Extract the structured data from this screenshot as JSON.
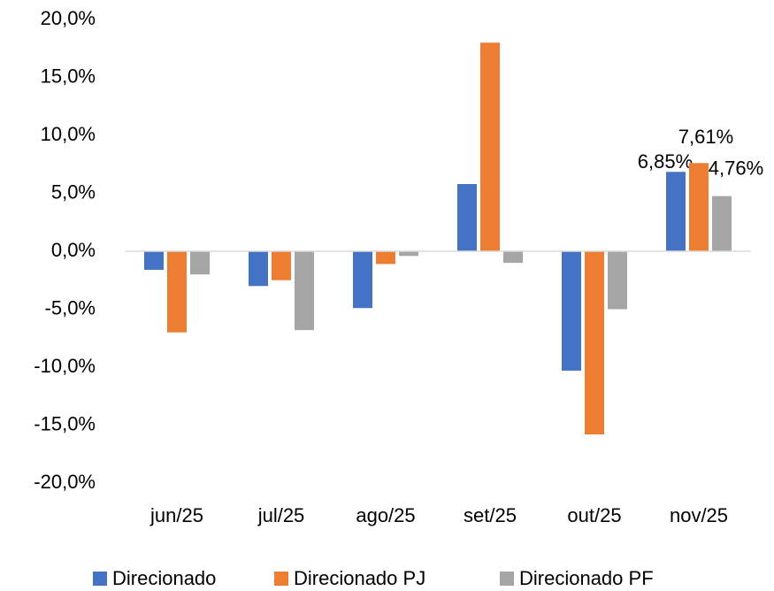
{
  "chart_data": {
    "type": "bar",
    "categories": [
      "jun/25",
      "jul/25",
      "ago/25",
      "set/25",
      "out/25",
      "nov/25"
    ],
    "series": [
      {
        "name": "Direcionado",
        "color": "#4472c4",
        "values": [
          -1.6,
          -3.0,
          -4.9,
          5.8,
          -10.3,
          6.85
        ],
        "value_labels": [
          null,
          null,
          null,
          null,
          null,
          "6,85%"
        ]
      },
      {
        "name": "Direcionado PJ",
        "color": "#ed7d31",
        "values": [
          -7.0,
          -2.5,
          -1.1,
          18.0,
          -15.8,
          7.61
        ],
        "value_labels": [
          null,
          null,
          null,
          null,
          null,
          "7,61%"
        ]
      },
      {
        "name": "Direcionado PF",
        "color": "#a5a5a5",
        "values": [
          -2.0,
          -6.8,
          -0.4,
          -1.0,
          -5.0,
          4.76
        ],
        "value_labels": [
          null,
          null,
          null,
          null,
          null,
          "4,76%"
        ]
      }
    ],
    "ylim": [
      -20,
      20
    ],
    "yticks": [
      {
        "value": -20,
        "label": "-20,0%"
      },
      {
        "value": -15,
        "label": "-15,0%"
      },
      {
        "value": -10,
        "label": "-10,0%"
      },
      {
        "value": -5,
        "label": "-5,0%"
      },
      {
        "value": 0,
        "label": "0,0%"
      },
      {
        "value": 5,
        "label": "5,0%"
      },
      {
        "value": 10,
        "label": "10,0%"
      },
      {
        "value": 15,
        "label": "15,0%"
      },
      {
        "value": 20,
        "label": "20,0%"
      }
    ],
    "grid": false,
    "legend": "bottom"
  }
}
